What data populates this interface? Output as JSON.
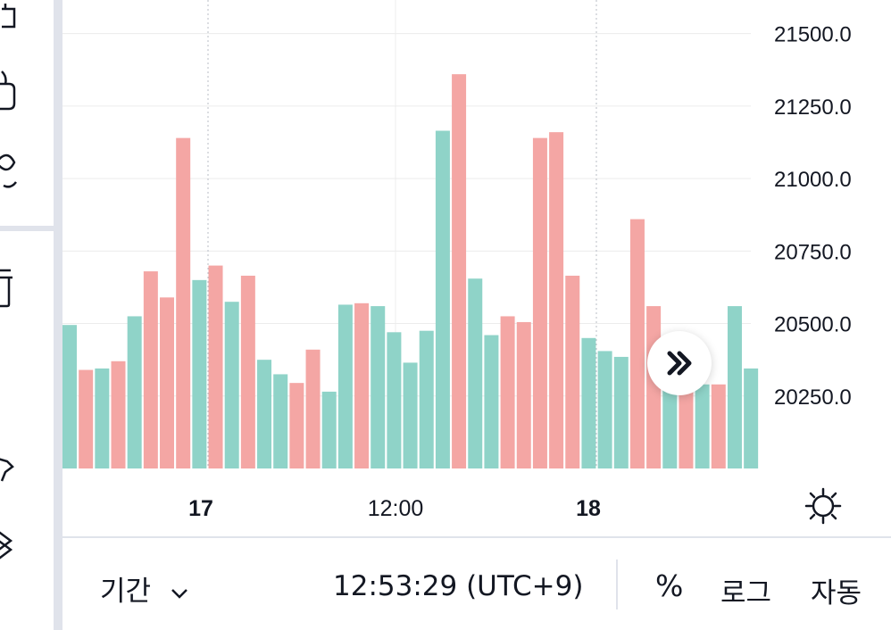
{
  "colors": {
    "up": "#8fd3c8",
    "down": "#f4a6a4",
    "grid": "#ececec",
    "text": "#131722",
    "divider": "#e0e3eb"
  },
  "left_toolbar": {
    "icons": [
      "lock-icon",
      "tag-icon",
      "eye-icon",
      "trash-icon",
      "star-icon",
      "layers-icon"
    ]
  },
  "price_axis": {
    "labels": [
      "21500.0",
      "21250.0",
      "21000.0",
      "20750.0",
      "20500.0",
      "20250.0"
    ]
  },
  "time_axis": {
    "labels": [
      {
        "text": "17",
        "bold": true
      },
      {
        "text": "12:00",
        "bold": false
      },
      {
        "text": "18",
        "bold": true
      }
    ]
  },
  "bottom_bar": {
    "range_label": "기간",
    "clock": "12:53:29 (UTC+9)",
    "percent_label": "%",
    "log_label": "로그",
    "auto_label": "자동"
  },
  "chart_data": {
    "type": "bar",
    "title": "",
    "ylim": [
      20050,
      21650
    ],
    "grid": true,
    "bars": [
      {
        "v": 20495,
        "dir": "up"
      },
      {
        "v": 20340,
        "dir": "down"
      },
      {
        "v": 20345,
        "dir": "up"
      },
      {
        "v": 20370,
        "dir": "down"
      },
      {
        "v": 20525,
        "dir": "up"
      },
      {
        "v": 20680,
        "dir": "down"
      },
      {
        "v": 20590,
        "dir": "down"
      },
      {
        "v": 21140,
        "dir": "down"
      },
      {
        "v": 20650,
        "dir": "up"
      },
      {
        "v": 20700,
        "dir": "down"
      },
      {
        "v": 20575,
        "dir": "up"
      },
      {
        "v": 20665,
        "dir": "down"
      },
      {
        "v": 20375,
        "dir": "up"
      },
      {
        "v": 20325,
        "dir": "up"
      },
      {
        "v": 20295,
        "dir": "down"
      },
      {
        "v": 20410,
        "dir": "down"
      },
      {
        "v": 20265,
        "dir": "up"
      },
      {
        "v": 20565,
        "dir": "up"
      },
      {
        "v": 20570,
        "dir": "down"
      },
      {
        "v": 20560,
        "dir": "up"
      },
      {
        "v": 20470,
        "dir": "up"
      },
      {
        "v": 20365,
        "dir": "up"
      },
      {
        "v": 20475,
        "dir": "up"
      },
      {
        "v": 21165,
        "dir": "up"
      },
      {
        "v": 21360,
        "dir": "down"
      },
      {
        "v": 20655,
        "dir": "up"
      },
      {
        "v": 20460,
        "dir": "up"
      },
      {
        "v": 20525,
        "dir": "down"
      },
      {
        "v": 20505,
        "dir": "down"
      },
      {
        "v": 21140,
        "dir": "down"
      },
      {
        "v": 21160,
        "dir": "down"
      },
      {
        "v": 20665,
        "dir": "down"
      },
      {
        "v": 20450,
        "dir": "up"
      },
      {
        "v": 20405,
        "dir": "up"
      },
      {
        "v": 20385,
        "dir": "up"
      },
      {
        "v": 20860,
        "dir": "down"
      },
      {
        "v": 20560,
        "dir": "down"
      },
      {
        "v": 20320,
        "dir": "up"
      },
      {
        "v": 20380,
        "dir": "down"
      },
      {
        "v": 20290,
        "dir": "up"
      },
      {
        "v": 20290,
        "dir": "down"
      },
      {
        "v": 20560,
        "dir": "up"
      },
      {
        "v": 20345,
        "dir": "up"
      }
    ]
  }
}
